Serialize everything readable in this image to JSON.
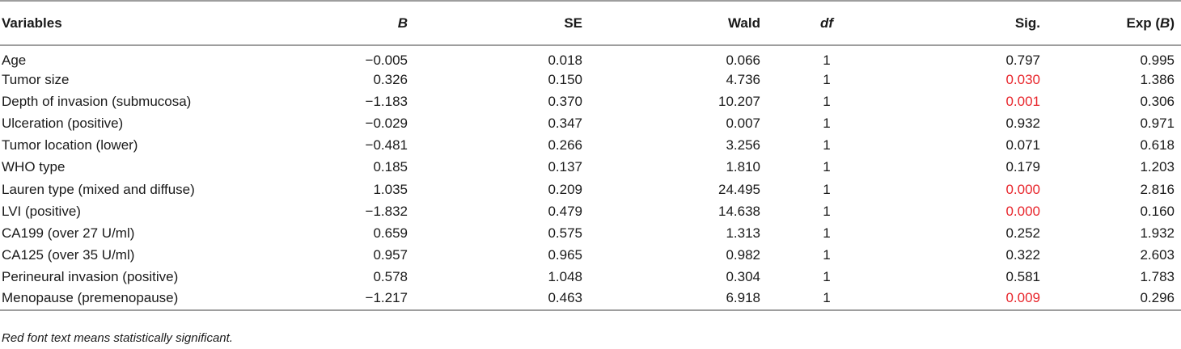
{
  "table": {
    "headers": {
      "variables": "Variables",
      "b": "B",
      "se": "SE",
      "wald": "Wald",
      "df": "df",
      "sig": "Sig.",
      "exp_prefix": "Exp (",
      "exp_b": "B",
      "exp_suffix": ")"
    },
    "rows": [
      {
        "variable": "Age",
        "b": "−0.005",
        "se": "0.018",
        "wald": "0.066",
        "df": "1",
        "sig": "0.797",
        "exp": "0.995",
        "significant": false
      },
      {
        "variable": "Tumor size",
        "b": "0.326",
        "se": "0.150",
        "wald": "4.736",
        "df": "1",
        "sig": "0.030",
        "exp": "1.386",
        "significant": true
      },
      {
        "variable": "Depth of invasion (submucosa)",
        "b": "−1.183",
        "se": "0.370",
        "wald": "10.207",
        "df": "1",
        "sig": "0.001",
        "exp": "0.306",
        "significant": true
      },
      {
        "variable": "Ulceration (positive)",
        "b": "−0.029",
        "se": "0.347",
        "wald": "0.007",
        "df": "1",
        "sig": "0.932",
        "exp": "0.971",
        "significant": false
      },
      {
        "variable": "Tumor location (lower)",
        "b": "−0.481",
        "se": "0.266",
        "wald": "3.256",
        "df": "1",
        "sig": "0.071",
        "exp": "0.618",
        "significant": false
      },
      {
        "variable": "WHO type",
        "b": "0.185",
        "se": "0.137",
        "wald": "1.810",
        "df": "1",
        "sig": "0.179",
        "exp": "1.203",
        "significant": false
      },
      {
        "variable": "Lauren type (mixed and diffuse)",
        "b": "1.035",
        "se": "0.209",
        "wald": "24.495",
        "df": "1",
        "sig": "0.000",
        "exp": "2.816",
        "significant": true
      },
      {
        "variable": "LVI (positive)",
        "b": "−1.832",
        "se": "0.479",
        "wald": "14.638",
        "df": "1",
        "sig": "0.000",
        "exp": "0.160",
        "significant": true
      },
      {
        "variable": "CA199 (over 27 U/ml)",
        "b": "0.659",
        "se": "0.575",
        "wald": "1.313",
        "df": "1",
        "sig": "0.252",
        "exp": "1.932",
        "significant": false
      },
      {
        "variable": "CA125 (over 35 U/ml)",
        "b": "0.957",
        "se": "0.965",
        "wald": "0.982",
        "df": "1",
        "sig": "0.322",
        "exp": "2.603",
        "significant": false
      },
      {
        "variable": "Perineural invasion (positive)",
        "b": "0.578",
        "se": "1.048",
        "wald": "0.304",
        "df": "1",
        "sig": "0.581",
        "exp": "1.783",
        "significant": false
      },
      {
        "variable": "Menopause (premenopause)",
        "b": "−1.217",
        "se": "0.463",
        "wald": "6.918",
        "df": "1",
        "sig": "0.009",
        "exp": "0.296",
        "significant": true
      }
    ]
  },
  "note": "Red font text means statistically significant.",
  "colors": {
    "significant": "#e8262c",
    "rule": "#9e9e9e",
    "text": "#1a1a1a"
  }
}
